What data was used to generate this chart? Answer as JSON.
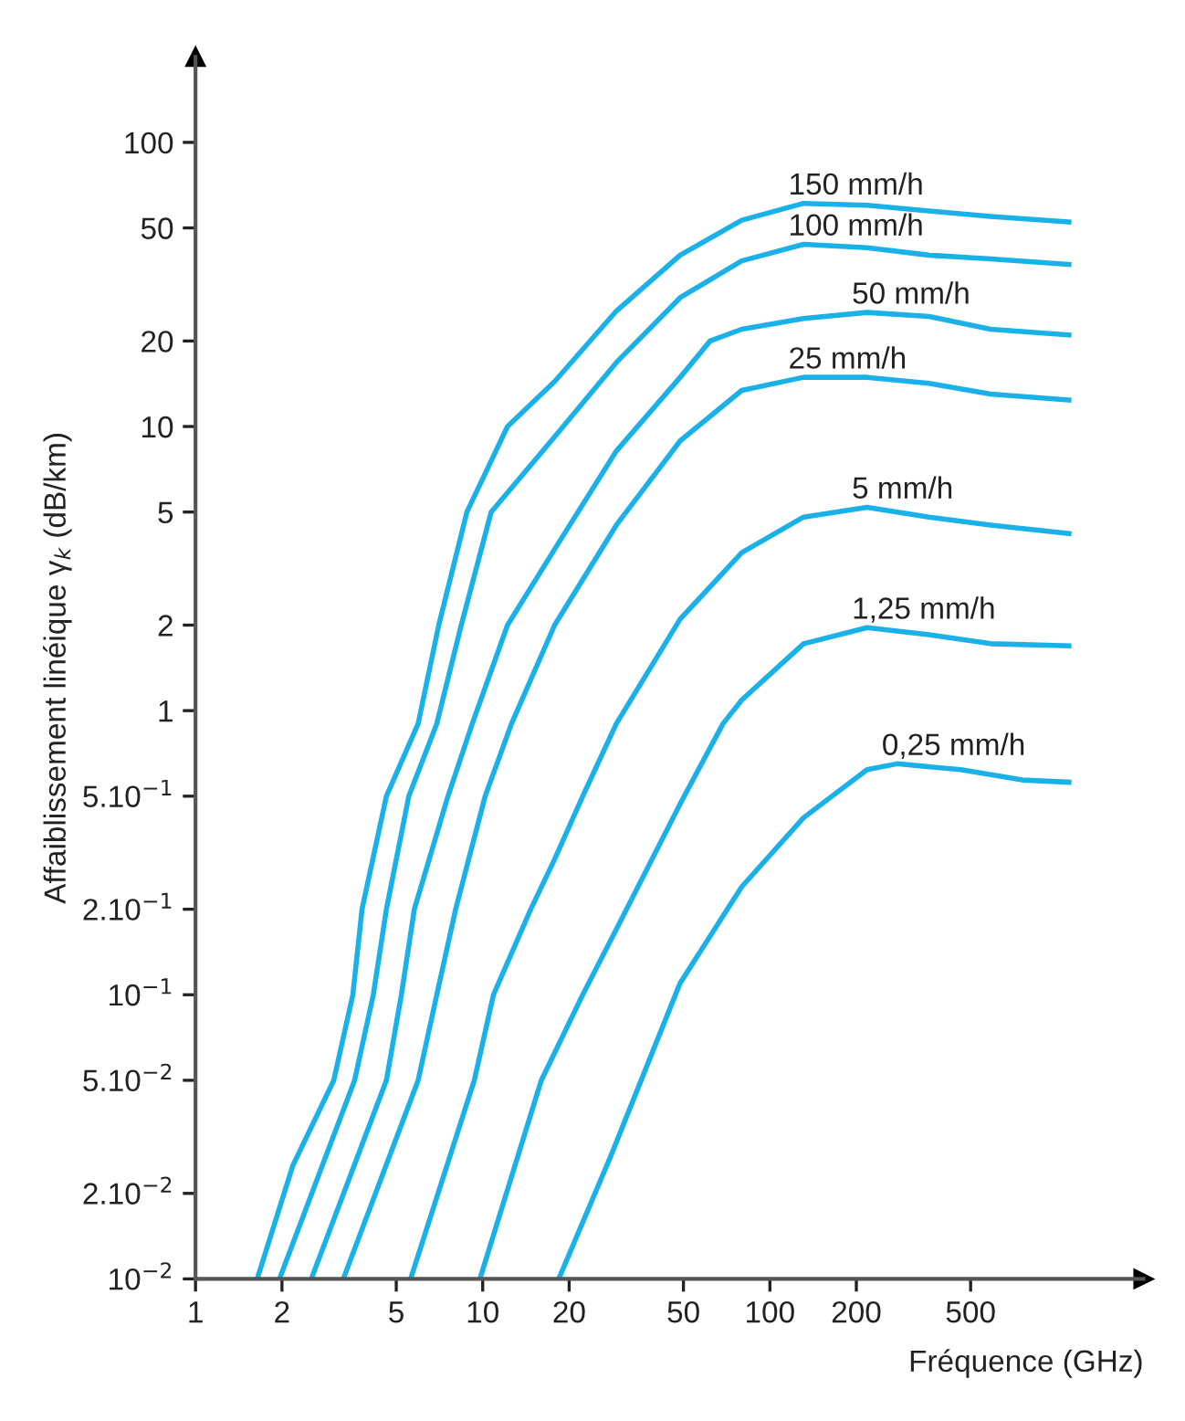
{
  "chart_data": {
    "type": "line",
    "xlabel": "Fréquence (GHz)",
    "ylabel": "Affaiblissement linéique γ$_{k}$ (dB/km)",
    "log": "xy",
    "xlim": [
      1,
      2000
    ],
    "ylim": [
      0.01,
      200
    ],
    "xticks": [
      1,
      2,
      5,
      10,
      20,
      50,
      100,
      200,
      500
    ],
    "yticks": [
      {
        "value": 0.01,
        "label": "10$^{−2}$"
      },
      {
        "value": 0.02,
        "label": "2.10$^{−2}$"
      },
      {
        "value": 0.05,
        "label": "5.10$^{−2}$"
      },
      {
        "value": 0.1,
        "label": "10$^{−1}$"
      },
      {
        "value": 0.2,
        "label": "2.10$^{−1}$"
      },
      {
        "value": 0.5,
        "label": "5.10$^{−1}$"
      },
      1,
      2,
      5,
      10,
      20,
      50,
      100
    ],
    "marker": "none",
    "line_style": "solid",
    "legend": false,
    "grid": false,
    "series": [
      {
        "name": "150 mm/h",
        "color": "#1ab0e8",
        "x": [
          1.64,
          2.18,
          3.03,
          3.53,
          3.8,
          4.62,
          5.96,
          7.03,
          8.81,
          12.2,
          17.8,
          29.2,
          48.7,
          79.8,
          131,
          218,
          358,
          587,
          1100
        ],
        "values": [
          0.01,
          0.025,
          0.05,
          0.1,
          0.2,
          0.5,
          0.9,
          2,
          5,
          10,
          14.4,
          25.5,
          40.1,
          53.2,
          61.0,
          60.1,
          57.4,
          54.9,
          52.5
        ]
      },
      {
        "name": "100 mm/h",
        "color": "#1ab0e8",
        "x": [
          1.96,
          3.58,
          4.16,
          4.62,
          5.53,
          6.92,
          8.42,
          10.7,
          17.8,
          29.2,
          48.7,
          79.8,
          131,
          218,
          358,
          587,
          1100
        ],
        "values": [
          0.01,
          0.05,
          0.1,
          0.2,
          0.5,
          0.9,
          2,
          5,
          9.2,
          16.8,
          28.4,
          38.3,
          43.8,
          42.6,
          40.1,
          38.9,
          37.2
        ]
      },
      {
        "name": "50 mm/h",
        "color": "#1ab0e8",
        "x": [
          2.53,
          4.62,
          5.21,
          5.78,
          7.57,
          9.2,
          12.2,
          17.8,
          29.2,
          48.7,
          61.9,
          79.8,
          131,
          218,
          358,
          587,
          1100
        ],
        "values": [
          0.01,
          0.05,
          0.1,
          0.2,
          0.5,
          0.9,
          2,
          3.7,
          8.2,
          14.9,
          20,
          22.0,
          24.0,
          25.2,
          24.4,
          22.0,
          21.0
        ]
      },
      {
        "name": "25 mm/h",
        "color": "#1ab0e8",
        "x": [
          3.27,
          5.96,
          6.92,
          8.05,
          10.2,
          12.6,
          17.8,
          29.2,
          48.7,
          79.8,
          131,
          218,
          358,
          587,
          1100
        ],
        "values": [
          0.01,
          0.05,
          0.1,
          0.2,
          0.5,
          0.9,
          2,
          4.5,
          8.9,
          13.4,
          14.9,
          14.9,
          14.2,
          13.0,
          12.4
        ]
      },
      {
        "name": "5 mm/h",
        "color": "#1ab0e8",
        "x": [
          5.61,
          9.35,
          10.9,
          14.7,
          17.8,
          22.3,
          29.2,
          48.7,
          79.8,
          131,
          218,
          358,
          587,
          1100
        ],
        "values": [
          0.01,
          0.05,
          0.1,
          0.2,
          0.3,
          0.5,
          0.9,
          2.1,
          3.6,
          4.8,
          5.2,
          4.8,
          4.5,
          4.2
        ]
      },
      {
        "name": "1,25 mm/h",
        "color": "#1ab0e8",
        "x": [
          9.78,
          16.0,
          22.3,
          29.2,
          48.7,
          68.7,
          79.8,
          131,
          218,
          358,
          587,
          1100
        ],
        "values": [
          0.01,
          0.05,
          0.1,
          0.17,
          0.47,
          0.9,
          1.09,
          1.72,
          1.96,
          1.85,
          1.72,
          1.69
        ]
      },
      {
        "name": "0,25 mm/h",
        "color": "#1ab0e8",
        "x": [
          18.4,
          27.9,
          48.7,
          79.8,
          131,
          218,
          277,
          462,
          757,
          1100
        ],
        "values": [
          0.01,
          0.027,
          0.11,
          0.24,
          0.42,
          0.62,
          0.65,
          0.62,
          0.57,
          0.56
        ]
      }
    ]
  }
}
